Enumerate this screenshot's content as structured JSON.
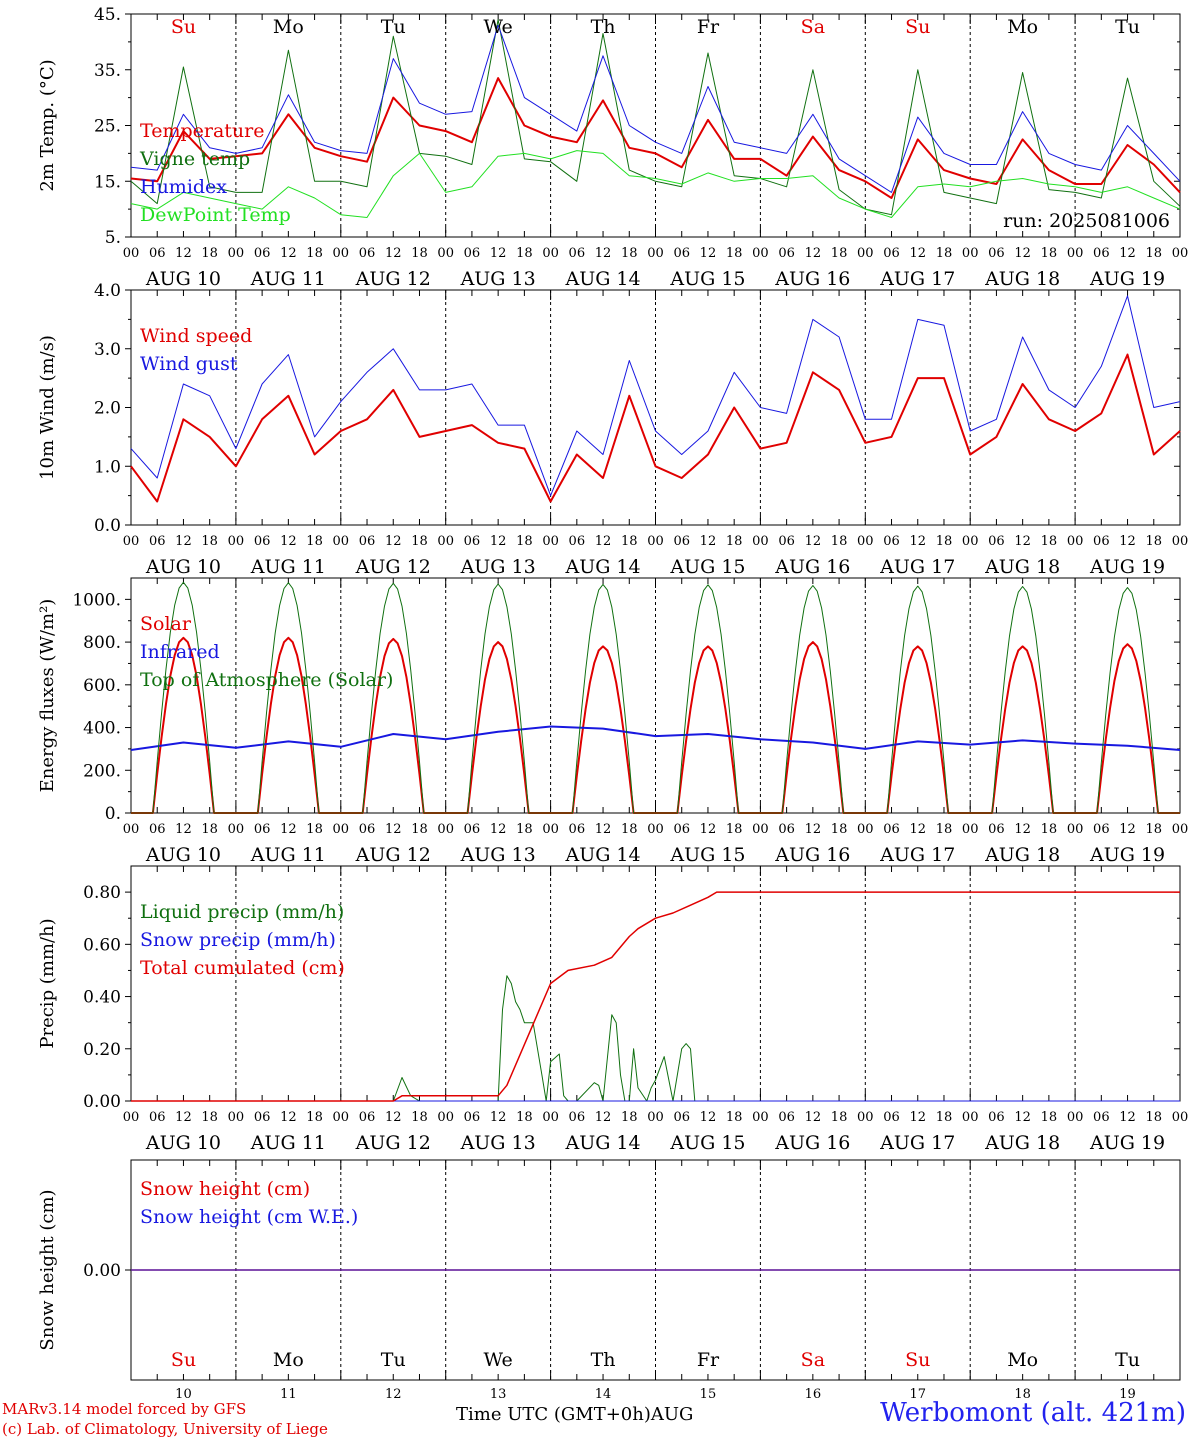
{
  "chart_data": [
    {
      "type": "line",
      "ylabel": "2m Temp. (°C)",
      "ylim": [
        5,
        45
      ],
      "yticks": [
        "5.",
        "15.",
        "25.",
        "35.",
        "45."
      ],
      "ytick_values": [
        5,
        15,
        25,
        35,
        45
      ],
      "x_hours": [
        0,
        6,
        12,
        18,
        24,
        30,
        36,
        42,
        48,
        54,
        60,
        66,
        72,
        78,
        84,
        90,
        96,
        102,
        108,
        114,
        120,
        126,
        132,
        138,
        144,
        150,
        156,
        162,
        168,
        174,
        180,
        186,
        192,
        198,
        204,
        210,
        216,
        222,
        228,
        234,
        240
      ],
      "weekday_labels": [
        {
          "label": "Su",
          "color": "#e00000"
        },
        {
          "label": "Mo",
          "color": "#000000"
        },
        {
          "label": "Tu",
          "color": "#000000"
        },
        {
          "label": "We",
          "color": "#000000"
        },
        {
          "label": "Th",
          "color": "#000000"
        },
        {
          "label": "Fr",
          "color": "#000000"
        },
        {
          "label": "Sa",
          "color": "#e00000"
        },
        {
          "label": "Su",
          "color": "#e00000"
        },
        {
          "label": "Mo",
          "color": "#000000"
        },
        {
          "label": "Tu",
          "color": "#000000"
        }
      ],
      "annotation": "run: 2025081006",
      "series": [
        {
          "name": "Temperature",
          "color": "#e00000",
          "width": 2,
          "values": [
            15.5,
            15,
            24,
            19,
            19.5,
            20,
            27,
            21,
            19.5,
            18.5,
            30,
            25,
            24,
            22,
            33.5,
            25,
            23,
            22,
            29.5,
            21,
            20,
            17.5,
            26,
            19,
            19,
            16,
            23,
            17,
            15,
            12,
            22.5,
            17,
            15.5,
            14.5,
            22.5,
            17,
            14.5,
            14.5,
            21.5,
            18,
            13
          ]
        },
        {
          "name": "Vigne temp",
          "color": "#107010",
          "width": 1,
          "values": [
            15,
            11,
            35.5,
            14,
            13,
            13,
            38.5,
            15,
            15,
            14,
            41,
            20,
            19.5,
            18,
            44,
            19,
            18.5,
            15,
            41.5,
            17,
            15,
            14,
            38,
            16,
            15.5,
            14,
            35,
            13.5,
            10,
            9,
            35,
            13,
            12,
            11,
            34.5,
            13.5,
            13,
            12,
            33.5,
            15,
            10.5
          ]
        },
        {
          "name": "Humidex",
          "color": "#1818e0",
          "width": 1,
          "values": [
            17.5,
            17,
            27,
            21,
            20,
            21,
            30.5,
            22,
            20.5,
            20,
            37,
            29,
            27,
            27.5,
            43,
            30,
            27,
            24,
            37.5,
            25,
            22,
            20,
            32,
            22,
            21,
            20,
            27,
            19,
            16,
            13,
            26.5,
            20,
            18,
            18,
            27.5,
            20,
            18,
            17,
            25,
            20,
            15
          ]
        },
        {
          "name": "DewPoint Temp",
          "color": "#22e022",
          "width": 1,
          "values": [
            11,
            10,
            13,
            12,
            11,
            10,
            14,
            12,
            9,
            8.5,
            16,
            20,
            13,
            14,
            19.5,
            20,
            19,
            20.5,
            20,
            16,
            15.5,
            14.5,
            16.5,
            15,
            15.5,
            15.5,
            16,
            12,
            10,
            8.5,
            14,
            14.5,
            14,
            15,
            15.5,
            14.5,
            14,
            13,
            14,
            12,
            10
          ]
        }
      ]
    },
    {
      "type": "line",
      "ylabel": "10m Wind (m/s)",
      "ylim": [
        0,
        4
      ],
      "yticks": [
        "0.0",
        "1.0",
        "2.0",
        "3.0",
        "4.0"
      ],
      "ytick_values": [
        0,
        1,
        2,
        3,
        4
      ],
      "x_hours": [
        0,
        6,
        12,
        18,
        24,
        30,
        36,
        42,
        48,
        54,
        60,
        66,
        72,
        78,
        84,
        90,
        96,
        102,
        108,
        114,
        120,
        126,
        132,
        138,
        144,
        150,
        156,
        162,
        168,
        174,
        180,
        186,
        192,
        198,
        204,
        210,
        216,
        222,
        228,
        234,
        240
      ],
      "series": [
        {
          "name": "Wind speed",
          "color": "#e00000",
          "width": 2,
          "values": [
            1.0,
            0.4,
            1.8,
            1.5,
            1.0,
            1.8,
            2.2,
            1.2,
            1.6,
            1.8,
            2.3,
            1.5,
            1.6,
            1.7,
            1.4,
            1.3,
            0.4,
            1.2,
            0.8,
            2.2,
            1.0,
            0.8,
            1.2,
            2.0,
            1.3,
            1.4,
            2.6,
            2.3,
            1.4,
            1.5,
            2.5,
            2.5,
            1.2,
            1.5,
            2.4,
            1.8,
            1.6,
            1.9,
            2.9,
            1.2,
            1.6
          ]
        },
        {
          "name": "Wind gust",
          "color": "#1818e0",
          "width": 1,
          "values": [
            1.3,
            0.8,
            2.4,
            2.2,
            1.3,
            2.4,
            2.9,
            1.5,
            2.1,
            2.6,
            3.0,
            2.3,
            2.3,
            2.4,
            1.7,
            1.7,
            0.5,
            1.6,
            1.2,
            2.8,
            1.6,
            1.2,
            1.6,
            2.6,
            2.0,
            1.9,
            3.5,
            3.2,
            1.8,
            1.8,
            3.5,
            3.4,
            1.6,
            1.8,
            3.2,
            2.3,
            2.0,
            2.7,
            3.9,
            2.0,
            2.1
          ]
        }
      ]
    },
    {
      "type": "line",
      "ylabel": "Energy fluxes (W/m²)",
      "ylim": [
        0,
        1100
      ],
      "yticks": [
        "0.",
        "200.",
        "400.",
        "600.",
        "800.",
        "1000."
      ],
      "ytick_values": [
        0,
        200,
        400,
        600,
        800,
        1000
      ],
      "series": [
        {
          "name": "Solar",
          "color": "#e00000",
          "width": 2,
          "daily_peaks": [
            820,
            820,
            815,
            800,
            780,
            780,
            800,
            780,
            780,
            790
          ]
        },
        {
          "name": "Infrared",
          "color": "#1818e0",
          "width": 2,
          "x_hours": [
            0,
            12,
            24,
            36,
            48,
            60,
            72,
            84,
            96,
            108,
            120,
            132,
            144,
            156,
            168,
            180,
            192,
            204,
            216,
            228,
            240
          ],
          "values": [
            295,
            330,
            305,
            335,
            310,
            370,
            345,
            380,
            405,
            395,
            360,
            370,
            345,
            330,
            300,
            335,
            320,
            340,
            325,
            315,
            295
          ]
        },
        {
          "name": "Top of Atmosphere (Solar)",
          "color": "#107010",
          "width": 1,
          "daily_peaks": [
            1080,
            1078,
            1075,
            1072,
            1070,
            1068,
            1065,
            1062,
            1060,
            1055
          ]
        }
      ]
    },
    {
      "type": "line",
      "ylabel": "Precip (mm/h)",
      "ylim": [
        0,
        0.9
      ],
      "yticks": [
        "0.00",
        "0.20",
        "0.40",
        "0.60",
        "0.80"
      ],
      "ytick_values": [
        0,
        0.2,
        0.4,
        0.6,
        0.8
      ],
      "series": [
        {
          "name": "Liquid precip (mm/h)",
          "color": "#107010",
          "width": 1,
          "x_hours": [
            0,
            60,
            62,
            64,
            66,
            84,
            85,
            86,
            87,
            88,
            89,
            90,
            92,
            94,
            95,
            96,
            98,
            99,
            100,
            102,
            106,
            107,
            108,
            110,
            111,
            112,
            113,
            114,
            115,
            116,
            118,
            119,
            120,
            122,
            124,
            126,
            127,
            128,
            129,
            130,
            132,
            133,
            240
          ],
          "values": [
            0,
            0,
            0.09,
            0.02,
            0,
            0,
            0.35,
            0.48,
            0.45,
            0.38,
            0.35,
            0.3,
            0.3,
            0.1,
            0,
            0.15,
            0.18,
            0.02,
            0,
            0,
            0.07,
            0.06,
            0,
            0.33,
            0.3,
            0.1,
            0,
            0,
            0.2,
            0.05,
            0,
            0.05,
            0.08,
            0.17,
            0,
            0.2,
            0.22,
            0.2,
            0,
            0,
            0,
            0,
            0
          ]
        },
        {
          "name": "Snow precip (mm/h)",
          "color": "#1818e0",
          "width": 1,
          "x_hours": [
            0,
            240
          ],
          "values": [
            0,
            0
          ]
        },
        {
          "name": "Total cumulated (cm)",
          "color": "#e00000",
          "width": 1.5,
          "x_hours": [
            0,
            60,
            62,
            84,
            86,
            96,
            100,
            106,
            110,
            114,
            116,
            120,
            124,
            128,
            132,
            134,
            240
          ],
          "values": [
            0,
            0,
            0.02,
            0.02,
            0.06,
            0.45,
            0.5,
            0.52,
            0.55,
            0.63,
            0.66,
            0.7,
            0.72,
            0.75,
            0.78,
            0.8,
            0.8
          ]
        }
      ]
    },
    {
      "type": "line",
      "ylabel": "Snow height (cm)",
      "ylim": [
        -1,
        1
      ],
      "yticks": [
        "0.00"
      ],
      "ytick_values": [
        0
      ],
      "series": [
        {
          "name": "Snow height (cm)",
          "color": "#e00000",
          "width": 1.5,
          "x_hours": [
            0,
            240
          ],
          "values": [
            0,
            0
          ]
        },
        {
          "name": "Snow height (cm W.E.)",
          "color": "#1818e0",
          "width": 1,
          "x_hours": [
            0,
            240
          ],
          "values": [
            0,
            0
          ]
        }
      ]
    }
  ],
  "axis": {
    "hour_ticks": [
      "00",
      "06",
      "12",
      "18"
    ],
    "final_tick": "00",
    "dates": [
      "AUG 10",
      "AUG 11",
      "AUG 12",
      "AUG 13",
      "AUG 14",
      "AUG 15",
      "AUG 16",
      "AUG 17",
      "AUG 18",
      "AUG 19"
    ],
    "bottom_weekdays": [
      {
        "label": "Su",
        "color": "#e00000"
      },
      {
        "label": "Mo",
        "color": "#000000"
      },
      {
        "label": "Tu",
        "color": "#000000"
      },
      {
        "label": "We",
        "color": "#000000"
      },
      {
        "label": "Th",
        "color": "#000000"
      },
      {
        "label": "Fr",
        "color": "#000000"
      },
      {
        "label": "Sa",
        "color": "#e00000"
      },
      {
        "label": "Su",
        "color": "#e00000"
      },
      {
        "label": "Mo",
        "color": "#000000"
      },
      {
        "label": "Tu",
        "color": "#000000"
      }
    ],
    "bottom_days": [
      "10",
      "11",
      "12",
      "13",
      "14",
      "15",
      "16",
      "17",
      "18",
      "19"
    ]
  },
  "footer": {
    "model_line": "MARv3.14 model forced by GFS",
    "copyright_line": "(c) Lab. of Climatology, University of Liege",
    "xlabel": "Time UTC (GMT+0h)",
    "month": "AUG",
    "station": "Werbomont (alt. 421m)"
  }
}
